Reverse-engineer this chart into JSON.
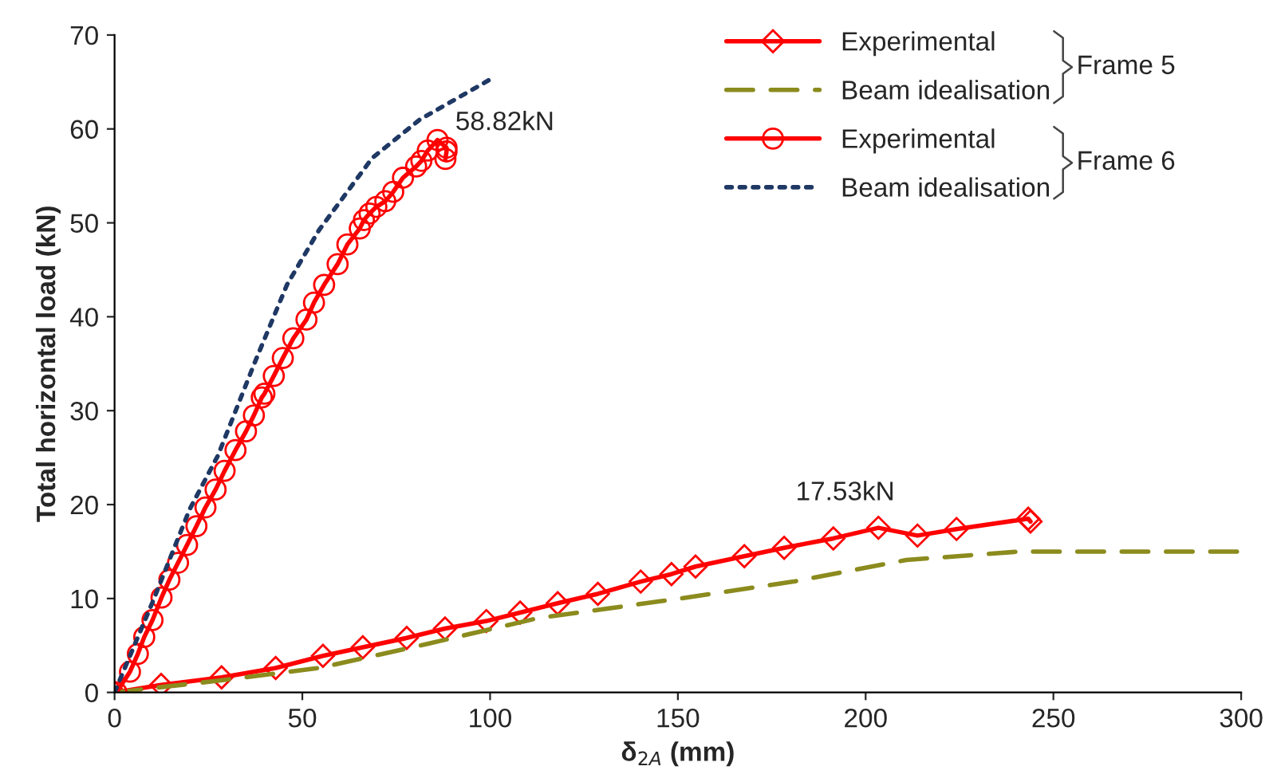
{
  "chart_data": {
    "type": "line",
    "xlabel": "δ$_{2A}$ (mm)",
    "ylabel": "Total horizontal load (kN)",
    "xlim": [
      0,
      300
    ],
    "xticks": [
      0,
      50,
      100,
      150,
      200,
      250,
      300
    ],
    "ylim": [
      0,
      70
    ],
    "yticks": [
      0,
      10,
      20,
      30,
      40,
      50,
      60,
      70
    ],
    "grid": false,
    "legend": "top right",
    "series": [
      {
        "name": "Experimental",
        "color": "#ff0000",
        "marker": "diamond",
        "line_style": "solid",
        "x": [
          0,
          12.4,
          28.5,
          42.9,
          55.5,
          66.1,
          77.8,
          88.0,
          99,
          108,
          118,
          128.7,
          140.1,
          148.3,
          154.7,
          167.7,
          178.3,
          191.4,
          203.4,
          213.8,
          224.2,
          243.3,
          243.9
        ],
        "values": [
          0,
          0.8,
          1.6,
          2.6,
          3.9,
          4.8,
          5.8,
          6.8,
          7.6,
          8.5,
          9.5,
          10.5,
          11.8,
          12.6,
          13.4,
          14.5,
          15.4,
          16.4,
          17.53,
          16.7,
          17.4,
          18.5,
          18.2
        ]
      },
      {
        "name": "Beam idealisation",
        "color": "#8b8b1e",
        "marker": "none",
        "line_style": "dashed",
        "x": [
          0,
          26.5,
          54.5,
          82.6,
          112.6,
          150.7,
          180.8,
          210.8,
          240.9,
          258.9,
          300
        ],
        "values": [
          0,
          1.2,
          2.6,
          5.1,
          7.9,
          10.0,
          11.8,
          14.1,
          15.0,
          15.0,
          15.0
        ]
      },
      {
        "name": "Experimental",
        "color": "#ff0000",
        "marker": "circle",
        "line_style": "solid",
        "x": [
          0.5,
          4.1,
          6.2,
          7.9,
          10.1,
          12.5,
          14.6,
          16.9,
          19.3,
          21.8,
          24.2,
          26.9,
          29.3,
          32.2,
          35.0,
          37.1,
          39.2,
          39.9,
          42.4,
          44.8,
          47.6,
          51.1,
          53.1,
          55.8,
          59.4,
          62.0,
          65.3,
          66.4,
          67.9,
          69.7,
          72.1,
          74.2,
          76.8,
          80.3,
          81.7,
          83.4,
          86.0,
          88.4,
          88.4,
          88.1
        ],
        "values": [
          0,
          2.2,
          4.1,
          5.9,
          7.7,
          10.1,
          12.0,
          13.8,
          15.7,
          17.7,
          19.7,
          21.6,
          23.6,
          25.8,
          27.8,
          29.5,
          31.4,
          31.8,
          33.7,
          35.6,
          37.7,
          39.7,
          41.5,
          43.4,
          45.6,
          47.7,
          49.4,
          50.3,
          51.0,
          51.7,
          52.3,
          53.3,
          54.8,
          56.0,
          56.6,
          57.7,
          58.82,
          58.0,
          57.6,
          56.8
        ]
      },
      {
        "name": "Beam idealisation",
        "color": "#1f3864",
        "marker": "none",
        "line_style": "dotted",
        "x": [
          0,
          10,
          20,
          27.5,
          37.4,
          45.9,
          54.4,
          68.6,
          81.3,
          99.7
        ],
        "values": [
          0,
          9.5,
          19.5,
          25.2,
          35.2,
          43.4,
          49.2,
          56.9,
          61.0,
          65.2
        ]
      }
    ],
    "annotations": [
      {
        "text": "58.82kN",
        "x": 86.0,
        "y": 58.82
      },
      {
        "text": "17.53kN",
        "x": 203.4,
        "y": 17.53
      },
      "Frame 5",
      "Frame 6"
    ]
  }
}
